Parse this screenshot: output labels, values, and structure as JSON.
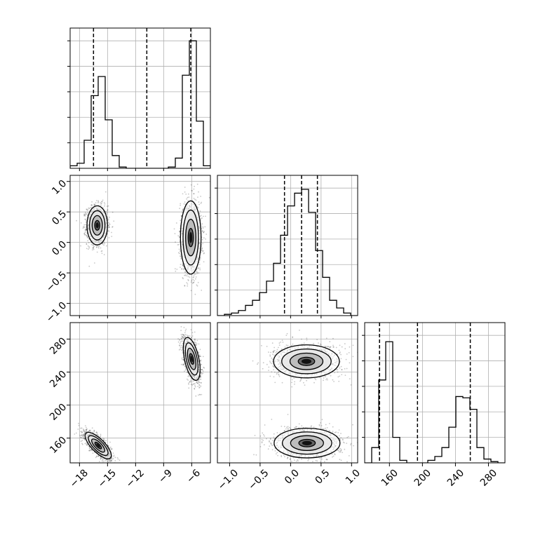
{
  "chart_data": {
    "type": "corner",
    "description_source": "corner plot of three parameters",
    "parameters": [
      {
        "range": [
          -19,
          -4
        ],
        "ticks": [
          -18,
          -15,
          -12,
          -9,
          -6
        ],
        "tick_labels": [
          "−18",
          "−15",
          "−12",
          "−9",
          "−6"
        ]
      },
      {
        "range": [
          -1.2,
          1.1
        ],
        "ticks": [
          -1.0,
          -0.5,
          0.0,
          0.5,
          1.0
        ],
        "tick_labels": [
          "−1.0",
          "−0.5",
          "0.0",
          "0.5",
          "1.0"
        ]
      },
      {
        "range": [
          130,
          300
        ],
        "ticks": [
          160,
          200,
          240,
          280
        ],
        "tick_labels": [
          "160",
          "200",
          "240",
          "280"
        ]
      }
    ],
    "histograms": [
      {
        "param": 0,
        "edges": [
          -19,
          -18.25,
          -17.5,
          -16.75,
          -16,
          -15.25,
          -14.5,
          -13.75,
          -13,
          -12.25,
          -11.5,
          -10.75,
          -10,
          -9.25,
          -8.5,
          -7.75,
          -7,
          -6.25,
          -5.5,
          -4.75,
          -4
        ],
        "counts": [
          0.02,
          0.04,
          0.22,
          0.57,
          0.72,
          0.38,
          0.1,
          0.01,
          0,
          0,
          0,
          0,
          0,
          0,
          0.01,
          0.08,
          0.73,
          1.0,
          0.37,
          0.02
        ],
        "quantiles": [
          -16.5,
          -10.8,
          -6.1
        ],
        "ylim": [
          0,
          1.1
        ]
      },
      {
        "param": 1,
        "edges": [
          -1.2,
          -1.085,
          -0.97,
          -0.855,
          -0.74,
          -0.625,
          -0.51,
          -0.395,
          -0.28,
          -0.165,
          -0.05,
          0.065,
          0.18,
          0.295,
          0.41,
          0.525,
          0.64,
          0.755,
          0.87,
          0.985,
          1.1
        ],
        "counts": [
          0,
          0.01,
          0.02,
          0.04,
          0.08,
          0.12,
          0.18,
          0.27,
          0.41,
          0.63,
          0.86,
          0.96,
          0.99,
          0.81,
          0.51,
          0.3,
          0.12,
          0.06,
          0.02,
          0
        ],
        "quantiles": [
          -0.1,
          0.18,
          0.44
        ],
        "ylim": [
          0,
          1.1
        ]
      },
      {
        "param": 2,
        "edges": [
          130,
          138.5,
          147,
          155.5,
          164,
          172.5,
          181,
          189.5,
          198,
          206.5,
          215,
          223.5,
          232,
          240.5,
          249,
          257.5,
          266,
          274.5,
          283,
          291.5,
          300
        ],
        "counts": [
          0,
          0.12,
          0.65,
          0.95,
          0.2,
          0.02,
          0,
          0,
          0,
          0.02,
          0.05,
          0.12,
          0.28,
          0.52,
          0.51,
          0.42,
          0.12,
          0.03,
          0.01,
          0
        ],
        "quantiles": [
          148,
          194,
          258
        ],
        "ylim": [
          0,
          1.1
        ]
      }
    ],
    "scatter_panels": [
      {
        "x_param": 0,
        "y_param": 1,
        "clusters": [
          {
            "center": [
              -16.1,
              0.28
            ],
            "sigma": [
              0.55,
              0.16
            ],
            "rho": 0.0,
            "weight": 0.5
          },
          {
            "center": [
              -6.1,
              0.08
            ],
            "sigma": [
              0.55,
              0.3
            ],
            "rho": 0.0,
            "weight": 0.5
          }
        ]
      },
      {
        "x_param": 0,
        "y_param": 2,
        "clusters": [
          {
            "center": [
              -16.0,
              151
            ],
            "sigma": [
              0.7,
              8
            ],
            "rho": -0.75,
            "weight": 0.5
          },
          {
            "center": [
              -6.0,
              256
            ],
            "sigma": [
              0.45,
              13
            ],
            "rho": -0.5,
            "weight": 0.5
          }
        ]
      },
      {
        "x_param": 1,
        "y_param": 2,
        "clusters": [
          {
            "center": [
              0.26,
              253
            ],
            "sigma": [
              0.27,
              10
            ],
            "rho": 0.0,
            "weight": 0.5
          },
          {
            "center": [
              0.27,
              154
            ],
            "sigma": [
              0.27,
              9
            ],
            "rho": 0.0,
            "weight": 0.5
          }
        ]
      }
    ],
    "contour_levels": [
      0.5,
      1.0,
      1.5,
      2.0
    ],
    "grid": true
  }
}
